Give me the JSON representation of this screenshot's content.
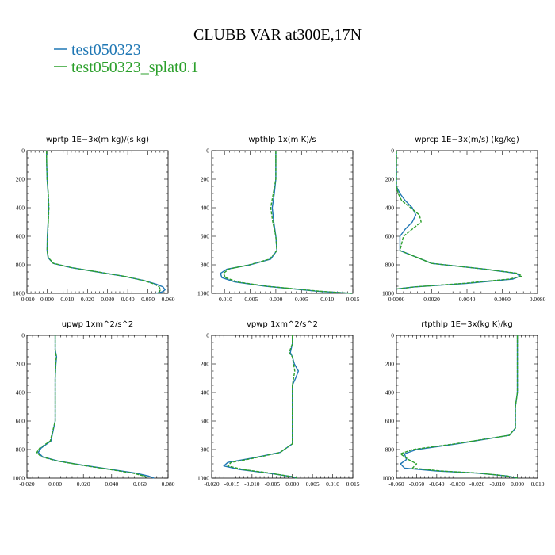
{
  "figure": {
    "title": "CLUBB VAR at300E,17N",
    "legend": [
      {
        "label": "test050323",
        "color": "#1f77b4"
      },
      {
        "label": "test050323_splat0.1",
        "color": "#2ca02c"
      }
    ]
  },
  "chart_data": [
    {
      "type": "line",
      "title": "wprtp  1E−3x(m kg)/(s kg)",
      "xlim": [
        -0.01,
        0.06
      ],
      "ylim": [
        1000,
        0
      ],
      "xticks": [
        "-0.010",
        "0.000",
        "0.010",
        "0.020",
        "0.030",
        "0.040",
        "0.050",
        "0.060"
      ],
      "xtick_values": [
        -0.01,
        0.0,
        0.01,
        0.02,
        0.03,
        0.04,
        0.05,
        0.06
      ],
      "yticks": [
        "0",
        "200",
        "400",
        "600",
        "800",
        "1000"
      ],
      "ytick_values": [
        0,
        200,
        400,
        600,
        800,
        1000
      ],
      "series": [
        {
          "name": "test050323",
          "color": "#1f77b4",
          "x": [
            -0.0003,
            -0.0002,
            0.0,
            0.0005,
            0.0008,
            0.0005,
            0.0001,
            0.0,
            0.0005,
            0.003,
            0.012,
            0.025,
            0.038,
            0.048,
            0.054,
            0.0575,
            0.0585,
            0.057,
            0.054
          ],
          "y": [
            0,
            100,
            200,
            300,
            400,
            500,
            600,
            700,
            750,
            790,
            820,
            850,
            880,
            910,
            935,
            955,
            975,
            990,
            1000
          ]
        },
        {
          "name": "test050323_splat0.1",
          "color": "#2ca02c",
          "x": [
            -0.0003,
            -0.0002,
            0.0,
            0.0006,
            0.0009,
            0.0006,
            0.0002,
            0.0,
            0.0006,
            0.0032,
            0.0122,
            0.0252,
            0.0382,
            0.0478,
            0.0532,
            0.0556,
            0.0562,
            0.0555,
            0.0545
          ],
          "y": [
            0,
            100,
            200,
            300,
            400,
            500,
            600,
            700,
            750,
            790,
            820,
            850,
            880,
            910,
            935,
            955,
            975,
            990,
            1000
          ]
        }
      ]
    },
    {
      "type": "line",
      "title": "wpthlp  1x(m K)/s",
      "xlim": [
        -0.0125,
        0.015
      ],
      "ylim": [
        1000,
        0
      ],
      "xticks": [
        "-0.010",
        "-0.005",
        "0.000",
        "0.005",
        "0.010",
        "0.015"
      ],
      "xtick_values": [
        -0.01,
        -0.005,
        0.0,
        0.005,
        0.01,
        0.015
      ],
      "yticks": [
        "0",
        "200",
        "400",
        "600",
        "800",
        "1000"
      ],
      "ytick_values": [
        0,
        200,
        400,
        600,
        800,
        1000
      ],
      "series": [
        {
          "name": "test050323",
          "color": "#1f77b4",
          "x": [
            0.0,
            0.0,
            0.0,
            -0.0003,
            -0.0007,
            -0.0004,
            0.0,
            0.0002,
            -0.001,
            -0.005,
            -0.0095,
            -0.0108,
            -0.0105,
            -0.008,
            -0.002,
            0.008,
            0.0148
          ],
          "y": [
            0,
            100,
            200,
            300,
            400,
            500,
            600,
            700,
            760,
            800,
            830,
            860,
            890,
            920,
            950,
            985,
            1000
          ]
        },
        {
          "name": "test050323_splat0.1",
          "color": "#2ca02c",
          "x": [
            0.0,
            0.0,
            0.0,
            -0.0005,
            -0.001,
            -0.0006,
            0.0,
            0.0002,
            -0.0012,
            -0.0052,
            -0.0092,
            -0.0102,
            -0.0098,
            -0.0075,
            -0.0018,
            0.0085,
            0.0148
          ],
          "y": [
            0,
            100,
            200,
            300,
            400,
            500,
            600,
            700,
            760,
            800,
            830,
            860,
            890,
            920,
            950,
            985,
            1000
          ]
        }
      ]
    },
    {
      "type": "line",
      "title": "wprcp  1E−3x(m/s) (kg/kg)",
      "xlim": [
        0,
        0.008
      ],
      "ylim": [
        1000,
        0
      ],
      "xticks": [
        "0.0000",
        "0.0020",
        "0.0040",
        "0.0060",
        "0.0080"
      ],
      "xtick_values": [
        0.0,
        0.002,
        0.004,
        0.006,
        0.008
      ],
      "yticks": [
        "0",
        "200",
        "400",
        "600",
        "800",
        "1000"
      ],
      "ytick_values": [
        0,
        200,
        400,
        600,
        800,
        1000
      ],
      "series": [
        {
          "name": "test050323",
          "color": "#1f77b4",
          "x": [
            0.0,
            0.0,
            0.0,
            0.0,
            0.0002,
            0.0005,
            0.0009,
            0.0011,
            0.0009,
            0.0005,
            0.0002,
            0.0002,
            0.002,
            0.005,
            0.0068,
            0.007,
            0.0066,
            0.004,
            0.001,
            0.0
          ],
          "y": [
            0,
            100,
            200,
            250,
            300,
            350,
            400,
            450,
            500,
            550,
            600,
            700,
            790,
            830,
            860,
            880,
            900,
            930,
            955,
            970
          ]
        },
        {
          "name": "test050323_splat0.1",
          "color": "#2ca02c",
          "x": [
            0.0,
            0.0,
            0.0,
            0.0,
            0.0001,
            0.0003,
            0.0008,
            0.0013,
            0.0014,
            0.0009,
            0.0004,
            0.0002,
            0.002,
            0.005,
            0.0069,
            0.0071,
            0.0064,
            0.0038,
            0.001,
            0.0
          ],
          "y": [
            0,
            100,
            200,
            250,
            300,
            350,
            400,
            450,
            500,
            550,
            600,
            700,
            790,
            830,
            860,
            880,
            900,
            930,
            955,
            970
          ]
        }
      ]
    },
    {
      "type": "line",
      "title": "upwp  1xm^2/s^2",
      "xlim": [
        -0.02,
        0.08
      ],
      "ylim": [
        1000,
        0
      ],
      "xticks": [
        "-0.020",
        "0.000",
        "0.020",
        "0.040",
        "0.060",
        "0.080"
      ],
      "xtick_values": [
        -0.02,
        0.0,
        0.02,
        0.04,
        0.06,
        0.08
      ],
      "yticks": [
        "0",
        "200",
        "400",
        "600",
        "800",
        "1000"
      ],
      "ytick_values": [
        0,
        200,
        400,
        600,
        800,
        1000
      ],
      "series": [
        {
          "name": "test050323",
          "color": "#1f77b4",
          "x": [
            0.0,
            0.0,
            0.001,
            0.0005,
            0.0,
            0.0,
            0.0,
            0.0,
            -0.003,
            -0.01,
            -0.012,
            -0.009,
            0.002,
            0.02,
            0.04,
            0.057,
            0.066,
            0.07
          ],
          "y": [
            0,
            100,
            150,
            200,
            300,
            400,
            500,
            600,
            740,
            790,
            820,
            850,
            880,
            910,
            940,
            965,
            985,
            1000
          ]
        },
        {
          "name": "test050323_splat0.1",
          "color": "#2ca02c",
          "x": [
            0.0,
            0.0,
            0.0008,
            0.0004,
            0.0,
            0.0,
            0.0,
            0.0,
            -0.0035,
            -0.011,
            -0.013,
            -0.01,
            0.0015,
            0.019,
            0.039,
            0.055,
            0.063,
            0.066
          ],
          "y": [
            0,
            100,
            150,
            200,
            300,
            400,
            500,
            600,
            740,
            790,
            820,
            850,
            880,
            910,
            940,
            965,
            985,
            1000
          ]
        }
      ]
    },
    {
      "type": "line",
      "title": "vpwp  1xm^2/s^2",
      "xlim": [
        -0.02,
        0.015
      ],
      "ylim": [
        1000,
        0
      ],
      "xticks": [
        "-0.020",
        "-0.015",
        "-0.010",
        "-0.005",
        "0.000",
        "0.005",
        "0.010",
        "0.015"
      ],
      "xtick_values": [
        -0.02,
        -0.015,
        -0.01,
        -0.005,
        0.0,
        0.005,
        0.01,
        0.015
      ],
      "yticks": [
        "0",
        "200",
        "400",
        "600",
        "800",
        "1000"
      ],
      "ytick_values": [
        0,
        200,
        400,
        600,
        800,
        1000
      ],
      "series": [
        {
          "name": "test050323",
          "color": "#1f77b4",
          "x": [
            0.0,
            0.0,
            -0.0005,
            0.0,
            0.0005,
            0.0015,
            0.0008,
            0.0,
            0.0,
            0.0,
            0.0,
            0.0,
            -0.003,
            -0.01,
            -0.016,
            -0.017,
            -0.013,
            -0.006,
            0.0,
            0.001
          ],
          "y": [
            0,
            60,
            120,
            150,
            200,
            250,
            300,
            350,
            450,
            550,
            650,
            760,
            820,
            860,
            890,
            915,
            940,
            965,
            990,
            1000
          ]
        },
        {
          "name": "test050323_splat0.1",
          "color": "#2ca02c",
          "x": [
            0.0,
            0.0,
            -0.0008,
            0.0,
            0.0003,
            0.0006,
            0.0003,
            0.0,
            0.0,
            0.0,
            0.0,
            0.0,
            -0.003,
            -0.0095,
            -0.0152,
            -0.016,
            -0.0122,
            -0.0055,
            0.0,
            0.001
          ],
          "y": [
            0,
            60,
            120,
            150,
            200,
            250,
            300,
            350,
            450,
            550,
            650,
            760,
            820,
            860,
            890,
            915,
            940,
            965,
            990,
            1000
          ]
        }
      ]
    },
    {
      "type": "line",
      "title": "rtpthlp  1E−3x(kg K)/kg",
      "xlim": [
        -0.06,
        0.01
      ],
      "ylim": [
        1000,
        0
      ],
      "xticks": [
        "-0.060",
        "-0.050",
        "-0.040",
        "-0.030",
        "-0.020",
        "-0.010",
        "0.000",
        "0.010"
      ],
      "xtick_values": [
        -0.06,
        -0.05,
        -0.04,
        -0.03,
        -0.02,
        -0.01,
        0.0,
        0.01
      ],
      "yticks": [
        "0",
        "200",
        "400",
        "600",
        "800",
        "1000"
      ],
      "ytick_values": [
        0,
        200,
        400,
        600,
        800,
        1000
      ],
      "series": [
        {
          "name": "test050323",
          "color": "#1f77b4",
          "x": [
            0.0,
            0.0,
            0.0,
            -0.0005,
            -0.001,
            -0.001,
            -0.004,
            -0.03,
            -0.05,
            -0.056,
            -0.055,
            -0.058,
            -0.056,
            -0.04,
            -0.02,
            -0.005,
            0.0
          ],
          "y": [
            0,
            200,
            400,
            450,
            500,
            650,
            700,
            760,
            800,
            830,
            870,
            900,
            930,
            950,
            965,
            985,
            1000
          ]
        },
        {
          "name": "test050323_splat0.1",
          "color": "#2ca02c",
          "x": [
            0.0,
            0.0,
            0.0,
            -0.0005,
            -0.001,
            -0.001,
            -0.004,
            -0.031,
            -0.052,
            -0.058,
            -0.054,
            -0.05,
            -0.052,
            -0.038,
            -0.019,
            -0.005,
            0.0
          ],
          "y": [
            0,
            200,
            400,
            450,
            500,
            650,
            700,
            760,
            800,
            830,
            870,
            900,
            930,
            950,
            965,
            985,
            1000
          ]
        }
      ]
    }
  ]
}
